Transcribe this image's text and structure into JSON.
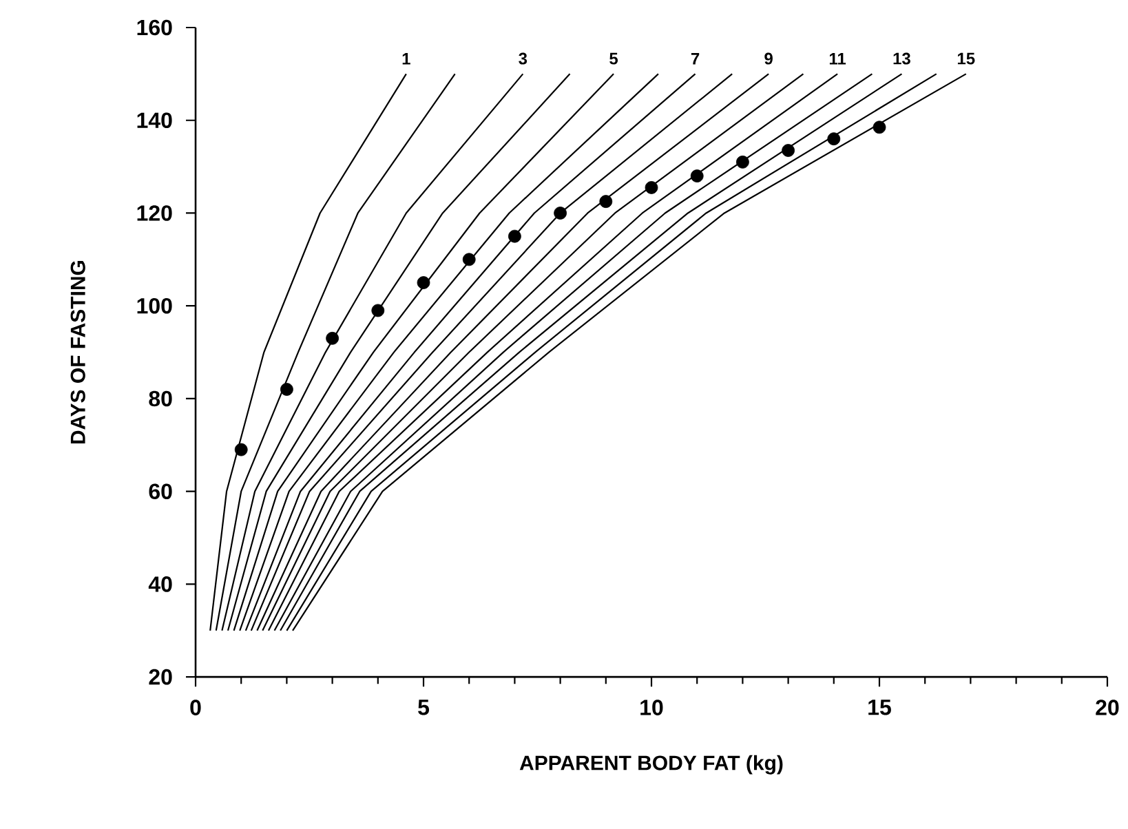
{
  "chart_data": {
    "type": "line",
    "xlabel": "APPARENT BODY FAT (kg)",
    "ylabel": "DAYS OF FASTING",
    "xlim": [
      0,
      20
    ],
    "ylim": [
      20,
      160
    ],
    "xticks": [
      0,
      5,
      10,
      15,
      20
    ],
    "yticks": [
      20,
      40,
      60,
      80,
      100,
      120,
      140,
      160
    ],
    "marker": "none",
    "series": [
      {
        "name": "1",
        "color": "#000000",
        "x": [
          0.32,
          0.68,
          1.5,
          2.73,
          4.62
        ],
        "values": [
          30,
          60,
          90,
          120,
          150
        ]
      },
      {
        "color": "#000000",
        "x": [
          0.45,
          1.0,
          2.25,
          3.56,
          5.69
        ],
        "values": [
          30,
          60,
          90,
          120,
          150
        ]
      },
      {
        "name": "3",
        "color": "#000000",
        "x": [
          0.58,
          1.3,
          2.85,
          4.62,
          7.18
        ],
        "values": [
          30,
          60,
          90,
          120,
          150
        ]
      },
      {
        "color": "#000000",
        "x": [
          0.71,
          1.55,
          3.4,
          5.42,
          8.21
        ],
        "values": [
          30,
          60,
          90,
          120,
          150
        ]
      },
      {
        "name": "5",
        "color": "#000000",
        "x": [
          0.84,
          1.8,
          3.9,
          6.23,
          9.17
        ],
        "values": [
          30,
          60,
          90,
          120,
          150
        ]
      },
      {
        "color": "#000000",
        "x": [
          0.97,
          2.05,
          4.35,
          6.88,
          10.15
        ],
        "values": [
          30,
          60,
          90,
          120,
          150
        ]
      },
      {
        "name": "7",
        "color": "#000000",
        "x": [
          1.1,
          2.3,
          4.8,
          7.43,
          10.96
        ],
        "values": [
          30,
          60,
          90,
          120,
          150
        ]
      },
      {
        "color": "#000000",
        "x": [
          1.22,
          2.5,
          5.2,
          8.0,
          11.77
        ],
        "values": [
          30,
          60,
          90,
          120,
          150
        ]
      },
      {
        "name": "9",
        "color": "#000000",
        "x": [
          1.35,
          2.75,
          5.6,
          8.6,
          12.57
        ],
        "values": [
          30,
          60,
          90,
          120,
          150
        ]
      },
      {
        "color": "#000000",
        "x": [
          1.47,
          2.95,
          6.0,
          9.2,
          13.33
        ],
        "values": [
          30,
          60,
          90,
          120,
          150
        ]
      },
      {
        "name": "11",
        "color": "#000000",
        "x": [
          1.6,
          3.15,
          6.4,
          9.8,
          14.08
        ],
        "values": [
          30,
          60,
          90,
          120,
          150
        ]
      },
      {
        "color": "#000000",
        "x": [
          1.73,
          3.4,
          6.75,
          10.3,
          14.84
        ],
        "values": [
          30,
          60,
          90,
          120,
          150
        ]
      },
      {
        "name": "13",
        "color": "#000000",
        "x": [
          1.86,
          3.6,
          7.1,
          10.8,
          15.49
        ],
        "values": [
          30,
          60,
          90,
          120,
          150
        ]
      },
      {
        "color": "#000000",
        "x": [
          2.0,
          3.85,
          7.45,
          11.2,
          16.25
        ],
        "values": [
          30,
          60,
          90,
          120,
          150
        ]
      },
      {
        "name": "15",
        "color": "#000000",
        "x": [
          2.13,
          4.1,
          7.75,
          11.6,
          16.9
        ],
        "values": [
          30,
          60,
          90,
          120,
          150
        ]
      },
      {
        "type": "scatter",
        "marker": "circle",
        "color": "#000000",
        "x": [
          1,
          2,
          3,
          4,
          5,
          6,
          7,
          8,
          9,
          10,
          11,
          12,
          13,
          14,
          15
        ],
        "values": [
          69,
          82,
          93,
          99,
          105,
          110,
          115,
          120,
          122.5,
          125.5,
          128,
          131,
          133.5,
          136,
          138.5
        ]
      }
    ]
  }
}
